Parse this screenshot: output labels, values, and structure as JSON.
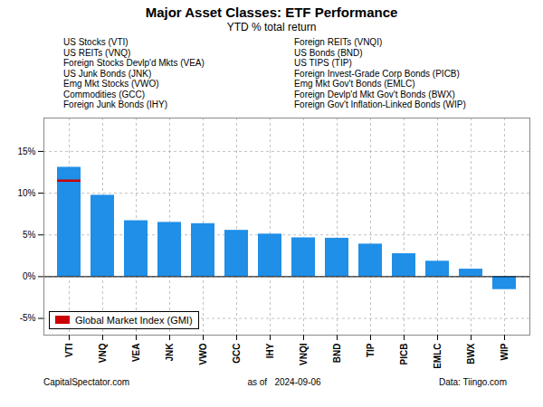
{
  "chart_data": {
    "type": "bar",
    "title": "Major Asset Classes: ETF Performance",
    "subtitle": "YTD % total return",
    "categories": [
      "VTI",
      "VNQ",
      "VEA",
      "JNK",
      "VWO",
      "GCC",
      "IHY",
      "VNQI",
      "BND",
      "TIP",
      "PICB",
      "EMLC",
      "BWX",
      "WIP"
    ],
    "values": [
      13.1,
      9.75,
      6.7,
      6.5,
      6.35,
      5.55,
      5.1,
      4.65,
      4.6,
      3.9,
      2.75,
      1.85,
      0.9,
      -1.55
    ],
    "color": "#1F8FE8",
    "reference": {
      "name": "Global Market Index (GMI)",
      "category": "VTI",
      "value": 11.5,
      "color": "#CC0000"
    },
    "legend": "lower left",
    "ylim": [
      -7,
      19
    ],
    "yticks": [
      {
        "value": -5,
        "label": "-5%"
      },
      {
        "value": 0,
        "label": "0%"
      },
      {
        "value": 5,
        "label": "5%"
      },
      {
        "value": 10,
        "label": "10%"
      },
      {
        "value": 15,
        "label": "15%"
      }
    ],
    "grid": true,
    "annotations": [
      "US Stocks (VTI)",
      "US REITs (VNQ)",
      "Foreign Stocks Devlp'd Mkts (VEA)",
      "US Junk Bonds (JNK)",
      "Emg Mkt Stocks (VWO)",
      "Commodities (GCC)",
      "Foreign Junk Bonds (IHY)",
      "Foreign REITs (VNQI)",
      "US Bonds (BND)",
      "US TIPS (TIP)",
      "Foreign Invest-Grade Corp Bonds (PICB)",
      "Emg Mkt Gov't Bonds (EMLC)",
      "Foreign Devlp'd Mkt Gov't Bonds (BWX)",
      "Foreign Gov't Inflation-Linked Bonds (WIP)"
    ],
    "footer": [
      "CapitalSpectator.com",
      "as of   2024-09-06",
      "Data: Tiingo.com"
    ]
  }
}
